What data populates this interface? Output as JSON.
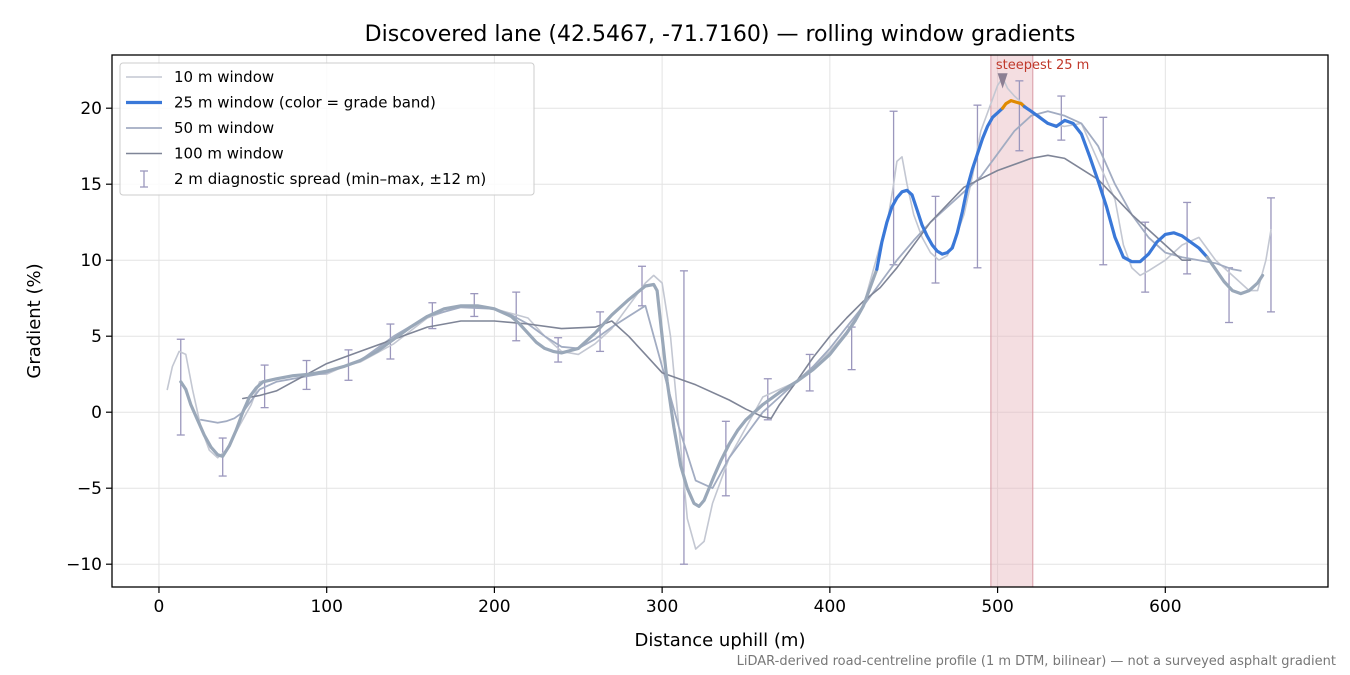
{
  "chart_data": {
    "type": "line",
    "title": "Discovered lane (42.5467, -71.7160) — rolling window gradients",
    "xlabel": "Distance uphill (m)",
    "ylabel": "Gradient (%)",
    "xlim": [
      -28,
      697
    ],
    "ylim": [
      -11.5,
      23.5
    ],
    "xticks": [
      0,
      100,
      200,
      300,
      400,
      500,
      600
    ],
    "yticks": [
      -10,
      -5,
      0,
      5,
      10,
      15,
      20
    ],
    "ytick_labels": [
      "−10",
      "−5",
      "0",
      "5",
      "10",
      "15",
      "20"
    ],
    "grid": true,
    "legend_position": "top-left",
    "highlight_band": {
      "x0": 496,
      "x1": 521,
      "label": "steepest 25 m",
      "marker_x": 503
    },
    "footnote": "LiDAR-derived road-centreline profile (1 m DTM, bilinear) — not a surveyed asphalt gradient",
    "colors": {
      "w10": "#c3c7d2",
      "w25_gray": "#9aa8b9",
      "w25_blue": "#3a78d8",
      "w25_orange": "#e08a00",
      "w50": "#a2acc2",
      "w100": "#7f8597",
      "err": "#9b97bd",
      "band": "#e7b5bd",
      "annot": "#c0392b"
    },
    "series": [
      {
        "name": "10 m window",
        "x": [
          5,
          8,
          12,
          16,
          20,
          25,
          30,
          35,
          40,
          45,
          50,
          55,
          60,
          65,
          70,
          80,
          90,
          100,
          110,
          120,
          140,
          160,
          180,
          200,
          210,
          220,
          230,
          240,
          250,
          260,
          270,
          280,
          290,
          295,
          300,
          305,
          310,
          315,
          320,
          325,
          330,
          340,
          350,
          360,
          370,
          380,
          390,
          400,
          410,
          420,
          425,
          430,
          435,
          438,
          440,
          443,
          446,
          450,
          455,
          460,
          465,
          470,
          475,
          480,
          485,
          490,
          495,
          500,
          503,
          506,
          510,
          515,
          520,
          525,
          530,
          540,
          550,
          560,
          570,
          575,
          580,
          585,
          590,
          600,
          610,
          620,
          630,
          640,
          650,
          655,
          660,
          663
        ],
        "values": [
          1.5,
          3,
          4,
          3.8,
          1.5,
          -1,
          -2.5,
          -3,
          -2.5,
          -1.5,
          -0.5,
          0.5,
          2,
          2.1,
          2.2,
          2.4,
          2.5,
          2.5,
          3,
          3.3,
          4.5,
          6.2,
          7,
          6.8,
          6.5,
          6.2,
          5,
          4,
          3.8,
          4.5,
          5.5,
          7,
          8.5,
          9,
          8.5,
          5,
          -1,
          -7,
          -9,
          -8.5,
          -6,
          -3,
          -1,
          1,
          1.5,
          2,
          3,
          4,
          5.3,
          7,
          9,
          11,
          13,
          15,
          16.5,
          16.8,
          15,
          13,
          11.5,
          10.5,
          10,
          10.3,
          11.5,
          13,
          15.5,
          18.5,
          20,
          21.5,
          22,
          21.3,
          20.8,
          20.3,
          19.8,
          19.5,
          19,
          18.8,
          19,
          16.5,
          14,
          11,
          9.5,
          9,
          9.3,
          10,
          11,
          11.5,
          10,
          9,
          8,
          8,
          10,
          12
        ],
        "stroke": "#c3c7d2",
        "stroke_width": 1.6
      },
      {
        "name": "25 m window (color = grade band)",
        "x": [
          13,
          16,
          19,
          23,
          27,
          31,
          35,
          38,
          42,
          46,
          50,
          54,
          58,
          62,
          66,
          70,
          80,
          90,
          100,
          110,
          120,
          130,
          140,
          150,
          160,
          170,
          180,
          190,
          200,
          210,
          215,
          220,
          225,
          230,
          235,
          240,
          250,
          260,
          270,
          280,
          290,
          295,
          297,
          300,
          303,
          307,
          311,
          315,
          319,
          322,
          325,
          328,
          331,
          335,
          340,
          345,
          350,
          360,
          370,
          380,
          390,
          400,
          405,
          410,
          415,
          420,
          425,
          428
        ],
        "values": [
          2,
          1.5,
          0.5,
          -0.5,
          -1.5,
          -2.3,
          -2.8,
          -2.9,
          -2.2,
          -1.2,
          0,
          1,
          1.6,
          2,
          2.1,
          2.2,
          2.4,
          2.5,
          2.7,
          3,
          3.4,
          4,
          4.8,
          5.6,
          6.3,
          6.8,
          7,
          7,
          6.8,
          6.3,
          5.8,
          5.2,
          4.6,
          4.2,
          4,
          3.9,
          4.2,
          5.2,
          6.4,
          7.4,
          8.3,
          8.4,
          8,
          5,
          2,
          -1,
          -3.5,
          -5,
          -6,
          -6.2,
          -5.8,
          -5,
          -4.2,
          -3.2,
          -2.1,
          -1.2,
          -0.5,
          0.5,
          1.3,
          2,
          2.8,
          3.8,
          4.5,
          5.2,
          6,
          7,
          8.5,
          9.4
        ],
        "stroke": "#9aa8b9",
        "stroke_width": 3.2
      },
      {
        "name": "25 m window (color = grade band)",
        "x": [
          428,
          431,
          434,
          437,
          440,
          443,
          446,
          449,
          452,
          455,
          458,
          461,
          464,
          467,
          470,
          473,
          476,
          479,
          482,
          485,
          488,
          491,
          494,
          497,
          500,
          503
        ],
        "values": [
          9.4,
          11.2,
          12.5,
          13.5,
          14.1,
          14.5,
          14.6,
          14.3,
          13.3,
          12.3,
          11.6,
          11,
          10.6,
          10.4,
          10.5,
          10.8,
          11.8,
          13.2,
          14.8,
          16,
          17,
          18,
          18.8,
          19.4,
          19.7,
          20
        ],
        "stroke": "#3a78d8",
        "stroke_width": 3.2
      },
      {
        "name": "25 m window (color = grade band)",
        "x": [
          503,
          505,
          508,
          511,
          514,
          516
        ],
        "values": [
          20,
          20.3,
          20.5,
          20.4,
          20.3,
          20.1
        ],
        "stroke": "#e08a00",
        "stroke_width": 3.2
      },
      {
        "name": "25 m window (color = grade band)",
        "x": [
          516,
          520,
          525,
          530,
          535,
          540,
          545,
          550,
          555,
          560,
          565,
          570,
          575,
          580,
          585,
          590,
          595,
          600,
          605,
          610,
          615,
          620,
          625
        ],
        "values": [
          20.1,
          19.8,
          19.4,
          19,
          18.8,
          19.2,
          19,
          18.3,
          16.8,
          15.2,
          13.5,
          11.5,
          10.2,
          9.9,
          9.9,
          10.4,
          11.2,
          11.7,
          11.8,
          11.6,
          11.2,
          10.8,
          10.2
        ],
        "stroke": "#3a78d8",
        "stroke_width": 3.2
      },
      {
        "name": "25 m window (color = grade band)",
        "x": [
          625,
          630,
          635,
          640,
          645,
          650,
          655,
          658
        ],
        "values": [
          10.2,
          9.4,
          8.6,
          8,
          7.8,
          8,
          8.5,
          9
        ],
        "stroke": "#9aa8b9",
        "stroke_width": 3.2
      },
      {
        "name": "50 m window",
        "x": [
          25,
          30,
          35,
          40,
          45,
          50,
          60,
          70,
          80,
          90,
          100,
          120,
          140,
          160,
          180,
          200,
          210,
          220,
          230,
          240,
          250,
          260,
          270,
          280,
          290,
          300,
          310,
          320,
          330,
          340,
          350,
          360,
          370,
          380,
          390,
          400,
          410,
          420,
          430,
          440,
          450,
          460,
          470,
          480,
          490,
          500,
          510,
          520,
          530,
          540,
          550,
          560,
          570,
          580,
          590,
          600,
          610,
          620,
          630,
          640,
          645
        ],
        "values": [
          -0.5,
          -0.6,
          -0.7,
          -0.6,
          -0.4,
          0,
          1.5,
          2,
          2.2,
          2.4,
          2.6,
          3.4,
          5,
          6.3,
          6.9,
          6.8,
          6.4,
          5.8,
          5,
          4.3,
          4.2,
          4.8,
          5.6,
          6.3,
          7,
          3,
          -1,
          -4.5,
          -5,
          -3,
          -1.5,
          0,
          1,
          2,
          3,
          4.2,
          5.6,
          7,
          8.5,
          10,
          11.3,
          12.5,
          13.5,
          14.5,
          15.5,
          17,
          18.5,
          19.5,
          19.8,
          19.5,
          19,
          17.5,
          15,
          13,
          11.5,
          10.5,
          10.2,
          10,
          9.8,
          9.4,
          9.3
        ],
        "stroke": "#a2acc2",
        "stroke_width": 1.8
      },
      {
        "name": "100 m window",
        "x": [
          50,
          60,
          70,
          80,
          90,
          100,
          120,
          140,
          160,
          180,
          200,
          220,
          240,
          260,
          270,
          280,
          290,
          300,
          320,
          340,
          350,
          360,
          365,
          370,
          380,
          390,
          400,
          410,
          420,
          430,
          440,
          460,
          480,
          500,
          520,
          530,
          540,
          560,
          580,
          600,
          610,
          615
        ],
        "values": [
          0.9,
          1.1,
          1.4,
          2,
          2.6,
          3.2,
          4,
          4.8,
          5.6,
          6,
          6,
          5.8,
          5.5,
          5.6,
          6,
          5,
          3.8,
          2.6,
          1.8,
          0.8,
          0.2,
          -0.3,
          -0.4,
          0.5,
          2,
          3.6,
          5,
          6.2,
          7.3,
          8.2,
          9.5,
          12.5,
          14.8,
          15.9,
          16.7,
          16.9,
          16.7,
          15.3,
          13,
          11,
          10,
          10
        ],
        "stroke": "#7f8597",
        "stroke_width": 1.6
      }
    ],
    "errorbars": {
      "name": "2 m diagnostic spread (min–max, ±12 m)",
      "x": [
        13,
        38,
        63,
        88,
        113,
        138,
        163,
        188,
        213,
        238,
        263,
        288,
        313,
        338,
        363,
        388,
        413,
        438,
        463,
        488,
        513,
        538,
        563,
        588,
        613,
        638,
        663
      ],
      "low": [
        -1.5,
        -4.2,
        0.3,
        1.5,
        2.1,
        3.5,
        5.5,
        6.3,
        4.7,
        3.3,
        4,
        7,
        -10,
        -5.5,
        -0.5,
        1.4,
        2.8,
        9.7,
        8.5,
        9.5,
        17.2,
        17.9,
        9.7,
        7.9,
        9.1,
        5.9,
        6.6
      ],
      "high": [
        4.8,
        -1.7,
        3.1,
        3.4,
        4.1,
        5.8,
        7.2,
        7.8,
        7.9,
        4.9,
        6.6,
        9.6,
        9.3,
        -0.6,
        2.2,
        3.8,
        5.6,
        19.8,
        14.2,
        20.2,
        21.8,
        20.8,
        19.4,
        12.5,
        13.8,
        9.5,
        14.1
      ]
    }
  }
}
